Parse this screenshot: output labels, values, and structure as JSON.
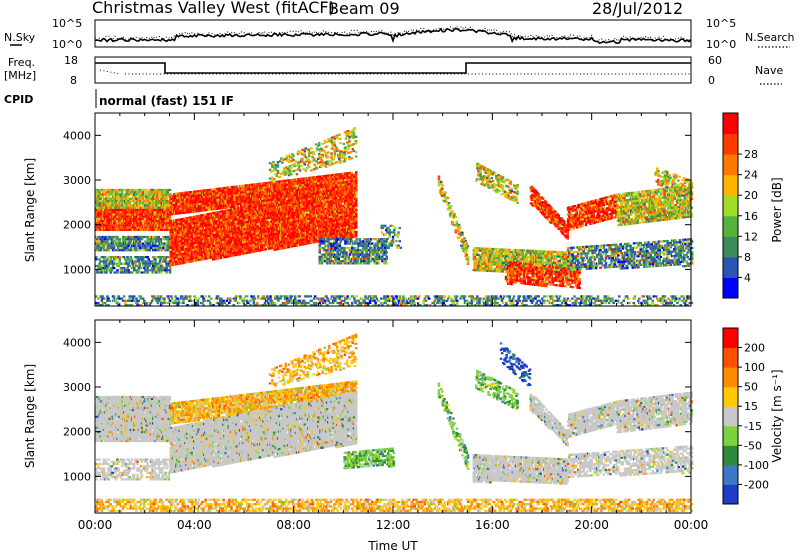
{
  "header": {
    "station_title": "Christmas Valley West (fitACF)",
    "beam_label": "Beam 09",
    "date": "28/Jul/2012"
  },
  "status_panels": {
    "noise_left_label": "N.Sky",
    "noise_right_label": "N.Search",
    "noise_left_ticks": [
      "10^5",
      "10^0"
    ],
    "noise_right_ticks": [
      "10^5",
      "10^0"
    ],
    "freq_label_line1": "Freq.",
    "freq_label_line2": "[MHz]",
    "freq_ticks": [
      "18",
      "8"
    ],
    "nave_label": "Nave",
    "nave_ticks": [
      "60",
      "0"
    ],
    "cpid_label": "CPID",
    "cpid_text": "normal (fast) 151 IF"
  },
  "colors": {
    "power": [
      "#0000ff",
      "#2b55b4",
      "#3c8c5a",
      "#55b43c",
      "#a0dc28",
      "#ffb400",
      "#ff7800",
      "#ff3c00",
      "#ff0000"
    ],
    "velocity": [
      "#1e3cc8",
      "#3c78c8",
      "#2d8c3c",
      "#7cd23c",
      "#c8c8c8",
      "#ffc800",
      "#ff8c00",
      "#ff5000",
      "#ff0000"
    ]
  },
  "chart_data": [
    {
      "type": "heatmap",
      "panel": "power",
      "xlabel": "",
      "ylabel": "Slant Range [km]",
      "y_ticks": [
        "1000",
        "2000",
        "3000",
        "4000"
      ],
      "ylim": [
        180,
        4500
      ],
      "colorbar_label": "Power [dB]",
      "colorbar_ticks": [
        "4",
        "8",
        "12",
        "16",
        "20",
        "24",
        "28"
      ]
    },
    {
      "type": "heatmap",
      "panel": "velocity",
      "xlabel": "Time UT",
      "ylabel": "Slant Range [km]",
      "x_ticks": [
        "00:00",
        "04:00",
        "08:00",
        "12:00",
        "16:00",
        "20:00",
        "00:00"
      ],
      "xlim_hours": [
        0,
        24
      ],
      "y_ticks": [
        "1000",
        "2000",
        "3000",
        "4000"
      ],
      "ylim": [
        180,
        4500
      ],
      "colorbar_label": "Velocity [m s⁻¹]",
      "colorbar_ticks": [
        "200",
        "100",
        "50",
        "15",
        "-15",
        "-50",
        "-100",
        "-200"
      ]
    }
  ]
}
